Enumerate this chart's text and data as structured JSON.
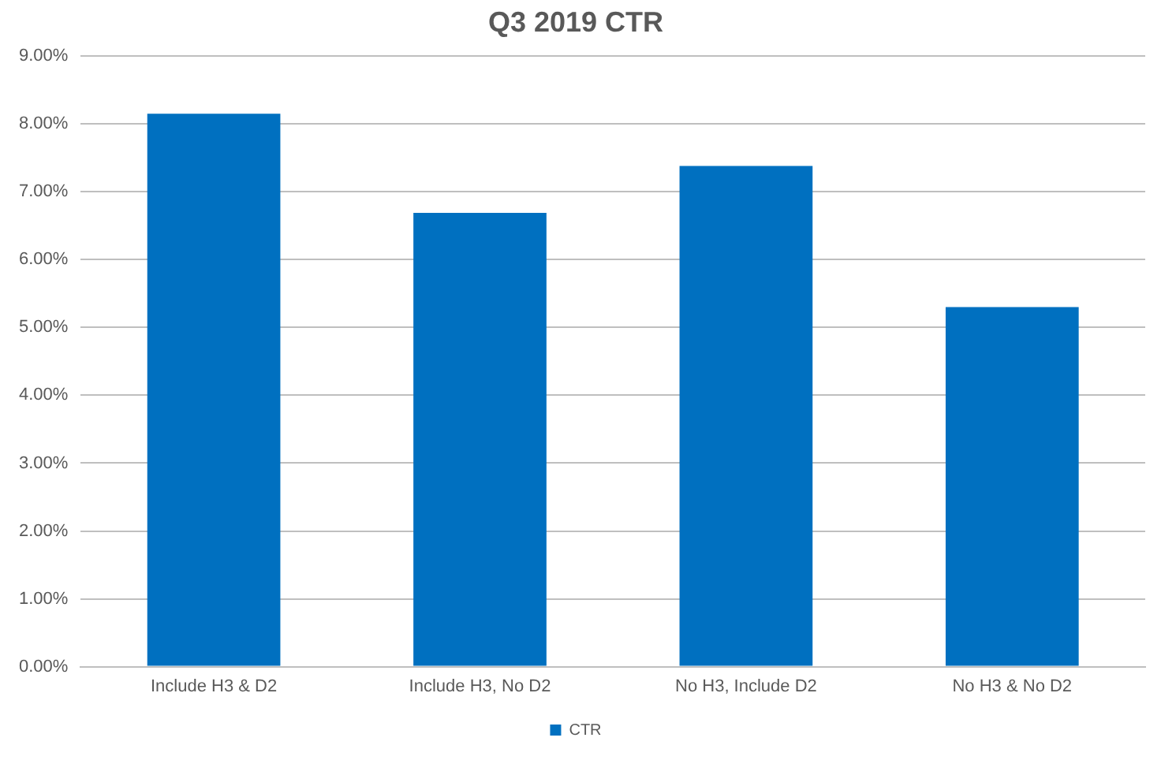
{
  "chart_data": {
    "type": "bar",
    "title": "Q3 2019 CTR",
    "categories": [
      "Include H3 & D2",
      "Include H3, No D2",
      "No H3, Include D2",
      "No H3 & No D2"
    ],
    "series": [
      {
        "name": "CTR",
        "color": "#0070c0",
        "values": [
          8.15,
          6.69,
          7.38,
          5.3
        ]
      }
    ],
    "ylim": [
      0,
      9
    ],
    "yticks": [
      {
        "value": 0,
        "label": "0.00%"
      },
      {
        "value": 1,
        "label": "1.00%"
      },
      {
        "value": 2,
        "label": "2.00%"
      },
      {
        "value": 3,
        "label": "3.00%"
      },
      {
        "value": 4,
        "label": "4.00%"
      },
      {
        "value": 5,
        "label": "5.00%"
      },
      {
        "value": 6,
        "label": "6.00%"
      },
      {
        "value": 7,
        "label": "7.00%"
      },
      {
        "value": 8,
        "label": "8.00%"
      },
      {
        "value": 9,
        "label": "9.00%"
      }
    ],
    "grid": "y",
    "legend": "bottom"
  }
}
